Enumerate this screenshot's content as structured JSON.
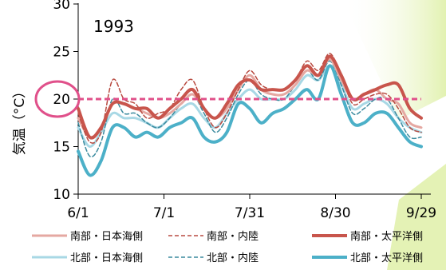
{
  "chart_data": {
    "type": "line",
    "title": "1993",
    "ylabel": "気温（°C）",
    "ylabel_main": "気温",
    "ylabel_unit": "（°C）",
    "xlabel": "",
    "ylim": [
      10,
      30
    ],
    "yticks": [
      "10",
      "15",
      "20",
      "25",
      "30"
    ],
    "xticks": [
      "6/1",
      "7/1",
      "7/31",
      "8/30",
      "9/29"
    ],
    "xtick_days": [
      0,
      30,
      60,
      90,
      120
    ],
    "x_start_label": "6/1",
    "x_end_label": "9/29",
    "highlight": {
      "value": 20,
      "label": "20",
      "color": "#e0508a"
    },
    "legend_position": "bottom",
    "series": [
      {
        "name": "南部・日本海側",
        "color": "#e5a8a2",
        "style": "solid",
        "width": 3,
        "x": [
          0,
          4,
          8,
          12,
          16,
          20,
          24,
          28,
          32,
          36,
          40,
          44,
          48,
          52,
          56,
          60,
          64,
          68,
          72,
          76,
          80,
          84,
          88,
          92,
          96,
          100,
          104,
          108,
          112,
          116,
          120
        ],
        "y": [
          18,
          16,
          17,
          19.5,
          19.5,
          19,
          18.5,
          18,
          18.5,
          19.5,
          20.5,
          19,
          18,
          19,
          21,
          22.5,
          21,
          20.5,
          20.5,
          21.5,
          23,
          22.5,
          24.2,
          22,
          20,
          20.5,
          21,
          20,
          19.5,
          17.5,
          17
        ]
      },
      {
        "name": "南部・内陸",
        "color": "#b84a40",
        "style": "dash",
        "width": 1.5,
        "x": [
          0,
          4,
          8,
          12,
          16,
          20,
          24,
          28,
          32,
          36,
          40,
          44,
          48,
          52,
          56,
          60,
          64,
          68,
          72,
          76,
          80,
          84,
          88,
          92,
          96,
          100,
          104,
          108,
          112,
          116,
          120
        ],
        "y": [
          18.5,
          15.5,
          16.5,
          22,
          20,
          19.5,
          18,
          18.5,
          19,
          21,
          22,
          19,
          17,
          18.5,
          21,
          23,
          21.5,
          21,
          21,
          22,
          24,
          23,
          24.8,
          22.5,
          19.5,
          20,
          20.5,
          20.5,
          19,
          17,
          16.5
        ]
      },
      {
        "name": "南部・太平洋側",
        "color": "#c8554c",
        "style": "solid",
        "width": 4,
        "x": [
          0,
          4,
          8,
          12,
          16,
          20,
          24,
          28,
          32,
          36,
          40,
          44,
          48,
          52,
          56,
          60,
          64,
          68,
          72,
          76,
          80,
          84,
          88,
          92,
          96,
          100,
          104,
          108,
          112,
          116,
          120
        ],
        "y": [
          19,
          16,
          17,
          19.5,
          19.5,
          19,
          19,
          18,
          19,
          20,
          21,
          19,
          18,
          19.5,
          21.5,
          22,
          21,
          21,
          21,
          22,
          23.5,
          22.5,
          24.5,
          22.5,
          20,
          20.5,
          21,
          21.5,
          21.5,
          19,
          18
        ]
      },
      {
        "name": "北部・日本海側",
        "color": "#a8d8e5",
        "style": "solid",
        "width": 3,
        "x": [
          0,
          4,
          8,
          12,
          16,
          20,
          24,
          28,
          32,
          36,
          40,
          44,
          48,
          52,
          56,
          60,
          64,
          68,
          72,
          76,
          80,
          84,
          88,
          92,
          96,
          100,
          104,
          108,
          112,
          116,
          120
        ],
        "y": [
          17,
          15,
          16.5,
          18.5,
          18,
          18,
          17.5,
          17,
          18,
          19,
          19.5,
          18,
          17,
          18.5,
          20,
          21,
          20,
          20,
          20,
          21,
          22.5,
          22,
          23.5,
          21.5,
          19,
          19.5,
          20,
          19.5,
          18,
          17,
          16.5
        ]
      },
      {
        "name": "北部・内陸",
        "color": "#3a8a9e",
        "style": "dash",
        "width": 1.5,
        "x": [
          0,
          4,
          8,
          12,
          16,
          20,
          24,
          28,
          32,
          36,
          40,
          44,
          48,
          52,
          56,
          60,
          64,
          68,
          72,
          76,
          80,
          84,
          88,
          92,
          96,
          100,
          104,
          108,
          112,
          116,
          120
        ],
        "y": [
          17.5,
          14,
          15.5,
          20,
          18.5,
          18.5,
          17.5,
          17,
          18,
          19.5,
          20.5,
          18.5,
          16.5,
          18,
          20.5,
          22,
          20.5,
          20,
          20,
          21.5,
          23,
          22,
          24,
          21.5,
          18.5,
          19,
          20,
          20,
          18,
          16,
          16
        ]
      },
      {
        "name": "北部・太平洋側",
        "color": "#4cb0c8",
        "style": "solid",
        "width": 4,
        "x": [
          0,
          4,
          8,
          12,
          16,
          20,
          24,
          28,
          32,
          36,
          40,
          44,
          48,
          52,
          56,
          60,
          64,
          68,
          72,
          76,
          80,
          84,
          88,
          92,
          96,
          100,
          104,
          108,
          112,
          116,
          120
        ],
        "y": [
          14.5,
          12,
          13.5,
          17,
          17,
          16,
          16.5,
          16,
          17,
          17.5,
          18,
          16,
          15.5,
          16.5,
          19.5,
          19,
          17.5,
          18.5,
          19,
          20,
          21,
          20,
          23.5,
          20.5,
          17.5,
          17.5,
          18.5,
          18.5,
          17,
          15.5,
          15
        ]
      }
    ]
  }
}
